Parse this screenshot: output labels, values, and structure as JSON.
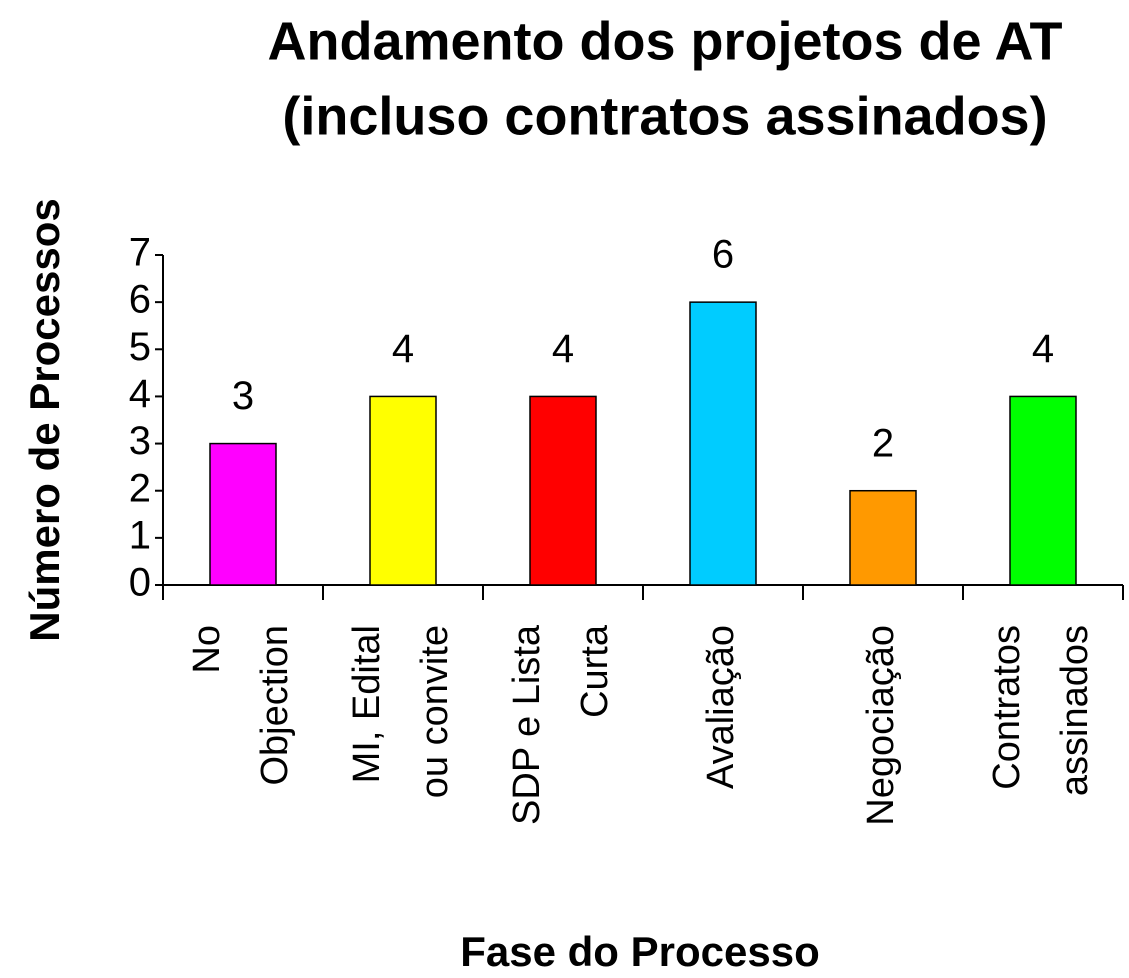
{
  "chart_data": {
    "type": "bar",
    "title": [
      "Andamento dos projetos de AT",
      "(incluso contratos assinados)"
    ],
    "y_label": "Número de Processos",
    "x_label": "Fase do Processo",
    "categories": [
      [
        "No",
        "Objection"
      ],
      [
        "MI, Edital",
        "ou convite"
      ],
      [
        "SDP e Lista",
        "Curta"
      ],
      [
        "Avaliação"
      ],
      [
        "Negociação"
      ],
      [
        "Contratos",
        "assinados"
      ]
    ],
    "values": [
      3,
      4,
      4,
      6,
      2,
      4
    ],
    "colors": [
      "#ff00ff",
      "#ffff00",
      "#ff0000",
      "#00ccff",
      "#ff9900",
      "#00ff00"
    ],
    "ylim": [
      0,
      7
    ],
    "yticks": [
      0,
      1,
      2,
      3,
      4,
      5,
      6,
      7
    ],
    "grid": false
  }
}
